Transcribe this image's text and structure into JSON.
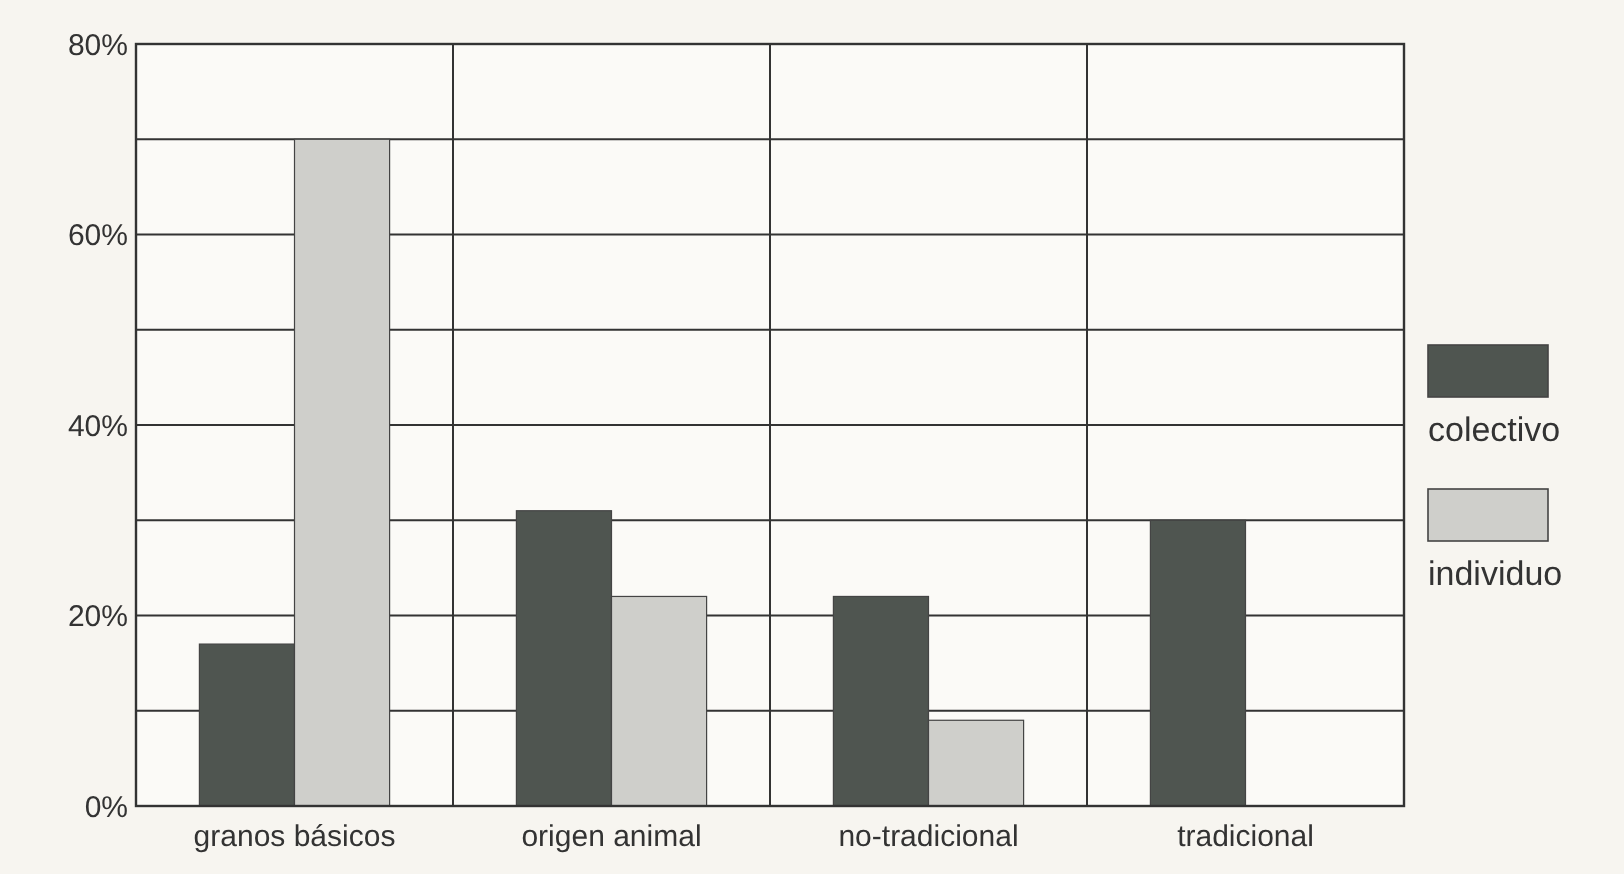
{
  "chart_data": {
    "type": "bar",
    "categories": [
      "granos básicos",
      "origen animal",
      "no-tradicional",
      "tradicional"
    ],
    "series": [
      {
        "name": "colectivo",
        "color": "#4f5550",
        "values": [
          17,
          31,
          22,
          30
        ]
      },
      {
        "name": "individuo",
        "color": "#cfcfcb",
        "values": [
          70,
          22,
          9,
          null
        ]
      }
    ],
    "ylim": [
      0,
      80
    ],
    "yticks": [
      {
        "value": 0,
        "label": "0%"
      },
      {
        "value": 10,
        "label": null
      },
      {
        "value": 20,
        "label": "20%"
      },
      {
        "value": 30,
        "label": null
      },
      {
        "value": 40,
        "label": "40%"
      },
      {
        "value": 50,
        "label": null
      },
      {
        "value": 60,
        "label": "60%"
      },
      {
        "value": 70,
        "label": null
      },
      {
        "value": 80,
        "label": "80%"
      }
    ],
    "grid": true,
    "legend": "right"
  }
}
